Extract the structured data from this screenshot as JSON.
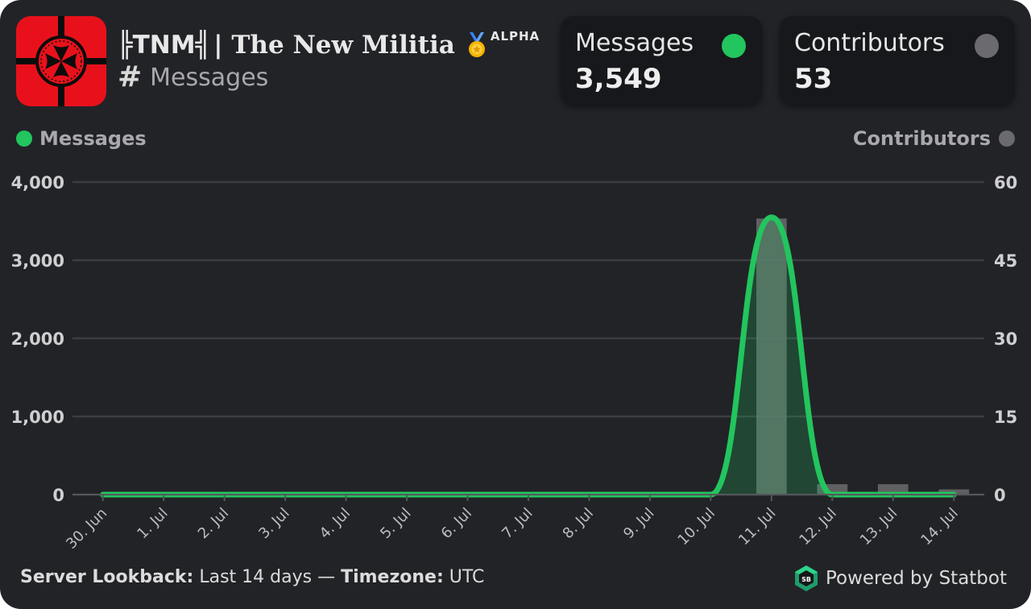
{
  "header": {
    "server_tag": "╠TNM╣",
    "server_name": "| The New Militia",
    "badge": "ALPHA",
    "channel_icon": "hash-icon",
    "channel": "Messages"
  },
  "stats": {
    "messages": {
      "label": "Messages",
      "value": "3,549",
      "color": "#22c55e"
    },
    "contributors": {
      "label": "Contributors",
      "value": "53",
      "color": "#6b6b6f"
    }
  },
  "legend": {
    "left": "Messages",
    "right": "Contributors"
  },
  "colors": {
    "background": "#222327",
    "messages_line": "#22c55e",
    "contributors_bar": "#6b6b6f",
    "grid": "#3c3d42",
    "server_icon_red": "#e8111b"
  },
  "chart_data": {
    "type": "line",
    "categories": [
      "30. Jun",
      "1. Jul",
      "2. Jul",
      "3. Jul",
      "4. Jul",
      "5. Jul",
      "6. Jul",
      "7. Jul",
      "8. Jul",
      "9. Jul",
      "10. Jul",
      "11. Jul",
      "12. Jul",
      "13. Jul",
      "14. Jul"
    ],
    "series": [
      {
        "name": "Messages",
        "type": "area",
        "axis": "left",
        "values": [
          0,
          0,
          0,
          0,
          0,
          0,
          0,
          0,
          0,
          0,
          0,
          3549,
          0,
          0,
          0
        ]
      },
      {
        "name": "Contributors",
        "type": "bar",
        "axis": "right",
        "values": [
          0,
          0,
          0,
          0,
          0,
          0,
          0,
          0,
          0,
          0,
          0,
          53,
          2,
          2,
          1
        ]
      }
    ],
    "y_left": {
      "range": [
        0,
        4000
      ],
      "ticks": [
        "0",
        "1,000",
        "2,000",
        "3,000",
        "4,000"
      ]
    },
    "y_right": {
      "range": [
        0,
        60
      ],
      "ticks": [
        "0",
        "15",
        "30",
        "45",
        "60"
      ]
    },
    "grid": true,
    "legend": "top"
  },
  "footer": {
    "lookback_label": "Server Lookback:",
    "lookback_value": "Last 14 days",
    "separator": "—",
    "timezone_label": "Timezone:",
    "timezone_value": "UTC",
    "powered_by": "Powered by Statbot",
    "logo_text": "SB"
  }
}
